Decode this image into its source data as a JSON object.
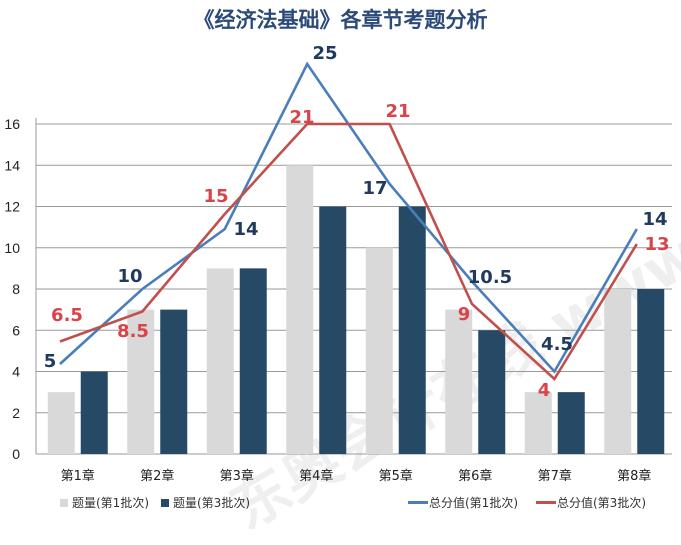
{
  "chart_data": {
    "type": "bar+line",
    "title": "《经济法基础》各章节考题分析",
    "categories": [
      "第1章",
      "第2章",
      "第3章",
      "第4章",
      "第5章",
      "第6章",
      "第7章",
      "第8章"
    ],
    "ylim": [
      0,
      16
    ],
    "yticks": [
      0,
      2,
      4,
      6,
      8,
      10,
      12,
      14,
      16
    ],
    "secondary_ylim": [
      -1,
      21
    ],
    "grid": true,
    "legend": "bottom",
    "bar_series": [
      {
        "name": "题量(第1批次)",
        "color": "#d9d9d9",
        "values": [
          3,
          7,
          9,
          14,
          10,
          7,
          3,
          8
        ]
      },
      {
        "name": "题量(第3批次)",
        "color": "#264966",
        "values": [
          4,
          7,
          9,
          12,
          12,
          6,
          3,
          8
        ]
      }
    ],
    "line_series": [
      {
        "name": "总分值(第1批次)",
        "color": "#4a7ebb",
        "label_color": "#1f3a5c",
        "values": [
          5,
          10,
          14,
          25,
          17,
          10.5,
          4.5,
          14
        ],
        "labels": [
          "5",
          "10",
          "14",
          "25",
          "17",
          "10.5",
          "4.5",
          "14"
        ]
      },
      {
        "name": "总分值(第3批次)",
        "color": "#c0504d",
        "label_color": "#d9434a",
        "values": [
          6.5,
          8.5,
          15,
          21,
          21,
          9,
          4,
          13
        ],
        "labels": [
          "6.5",
          "8.5",
          "15",
          "21",
          "21",
          "9",
          "4",
          "13"
        ]
      }
    ]
  },
  "watermark": "东奥会计在线 www.dongao.com"
}
